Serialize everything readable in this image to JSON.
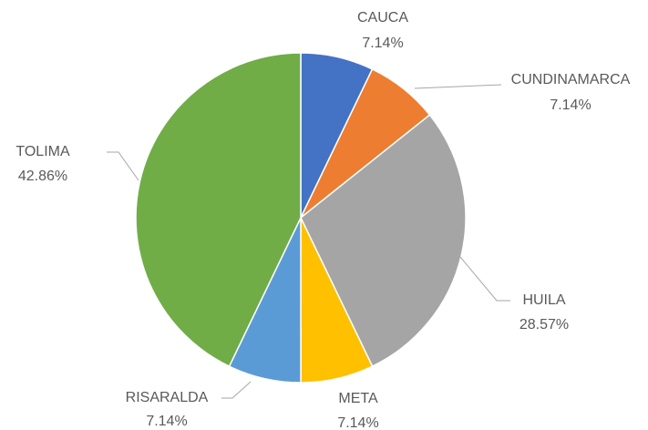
{
  "chart_data": {
    "type": "pie",
    "categories": [
      "CAUCA",
      "CUNDINAMARCA",
      "HUILA",
      "META",
      "RISARALDA",
      "TOLIMA"
    ],
    "values": [
      7.14,
      7.14,
      28.57,
      7.14,
      7.14,
      42.86
    ],
    "value_labels": [
      "7.14%",
      "7.14%",
      "28.57%",
      "7.14%",
      "7.14%",
      "42.86%"
    ],
    "colors": [
      "#4472c4",
      "#ed7d31",
      "#a5a5a5",
      "#ffc000",
      "#5b9bd5",
      "#70ad47"
    ]
  }
}
